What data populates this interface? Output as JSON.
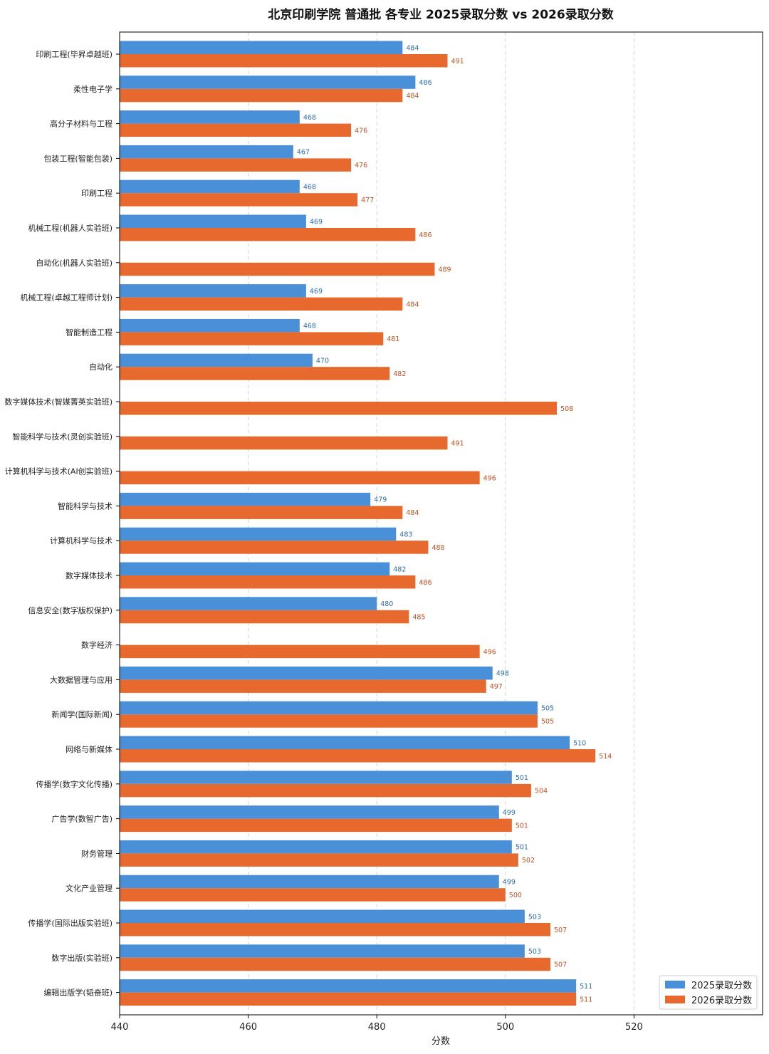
{
  "chart_data": {
    "type": "bar",
    "orientation": "horizontal",
    "title": "北京印刷学院 普通批 各专业 2025录取分数 vs 2026录取分数",
    "xlabel": "分数",
    "ylabel": "",
    "xlim": [
      440,
      540
    ],
    "xticks": [
      440,
      460,
      480,
      500,
      520
    ],
    "grid": "vertical dashed",
    "legend_position": "lower-right",
    "categories": [
      "印刷工程(毕昇卓越班)",
      "柔性电子学",
      "高分子材料与工程",
      "包装工程(智能包装)",
      "印刷工程",
      "机械工程(机器人实验班)",
      "自动化(机器人实验班)",
      "机械工程(卓越工程师计划)",
      "智能制造工程",
      "自动化",
      "数字媒体技术(智媒菁英实验班)",
      "智能科学与技术(灵创实验班)",
      "计算机科学与技术(AI创实验班)",
      "智能科学与技术",
      "计算机科学与技术",
      "数字媒体技术",
      "信息安全(数字版权保护)",
      "数字经济",
      "大数据管理与应用",
      "新闻学(国际新闻)",
      "网络与新媒体",
      "传播学(数字文化传播)",
      "广告学(数智广告)",
      "财务管理",
      "文化产业管理",
      "传播学(国际出版实验班)",
      "数字出版(实验班)",
      "编辑出版学(韬奋班)"
    ],
    "series": [
      {
        "name": "2025录取分数",
        "color": "#4a90d9",
        "values": [
          484,
          486,
          468,
          467,
          468,
          469,
          null,
          469,
          468,
          470,
          null,
          null,
          null,
          479,
          483,
          482,
          480,
          null,
          498,
          505,
          510,
          501,
          499,
          501,
          499,
          503,
          503,
          511
        ]
      },
      {
        "name": "2026录取分数",
        "color": "#e8692e",
        "values": [
          491,
          484,
          476,
          476,
          477,
          486,
          489,
          484,
          481,
          482,
          508,
          491,
          496,
          484,
          488,
          486,
          485,
          496,
          497,
          505,
          514,
          504,
          501,
          502,
          500,
          507,
          507,
          511
        ]
      }
    ],
    "label_colors": {
      "2025录取分数": "#2e6db5",
      "2026录取分数": "#c8501f"
    }
  }
}
